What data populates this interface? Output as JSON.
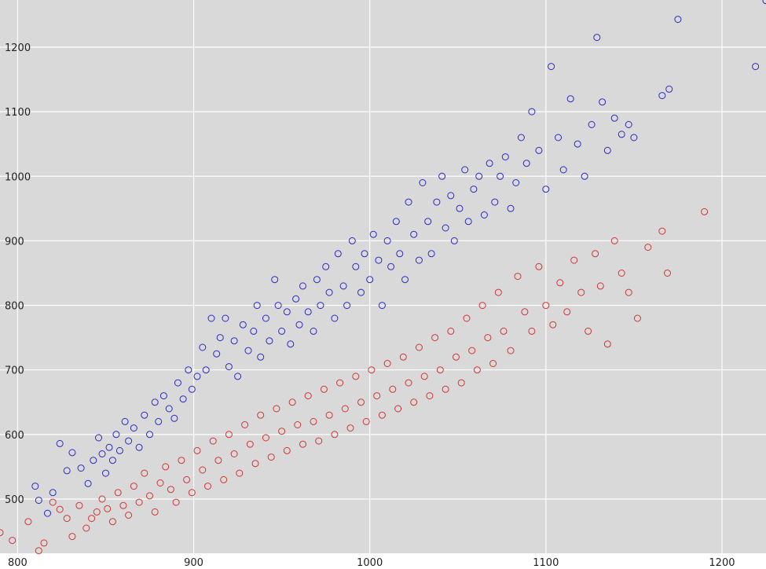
{
  "chart_data": {
    "type": "scatter",
    "title": "",
    "xlabel": "",
    "ylabel": "",
    "xlim": [
      790,
      1225
    ],
    "ylim": [
      416,
      1273
    ],
    "grid": true,
    "x_ticks": [
      800,
      900,
      1000,
      1100,
      1200
    ],
    "y_ticks": [
      500,
      600,
      700,
      800,
      900,
      1000,
      1100,
      1200
    ],
    "series": [
      {
        "color": "#2b2bc8",
        "marker": "open-circle",
        "points": [
          [
            810,
            520
          ],
          [
            812,
            498
          ],
          [
            817,
            478
          ],
          [
            820,
            510
          ],
          [
            824,
            586
          ],
          [
            828,
            544
          ],
          [
            831,
            572
          ],
          [
            836,
            548
          ],
          [
            840,
            524
          ],
          [
            843,
            560
          ],
          [
            846,
            595
          ],
          [
            848,
            570
          ],
          [
            850,
            540
          ],
          [
            852,
            580
          ],
          [
            854,
            560
          ],
          [
            856,
            600
          ],
          [
            858,
            575
          ],
          [
            861,
            620
          ],
          [
            863,
            590
          ],
          [
            866,
            610
          ],
          [
            869,
            580
          ],
          [
            872,
            630
          ],
          [
            875,
            600
          ],
          [
            878,
            650
          ],
          [
            880,
            620
          ],
          [
            883,
            660
          ],
          [
            886,
            640
          ],
          [
            889,
            625
          ],
          [
            891,
            680
          ],
          [
            894,
            655
          ],
          [
            897,
            700
          ],
          [
            899,
            670
          ],
          [
            902,
            690
          ],
          [
            905,
            735
          ],
          [
            907,
            700
          ],
          [
            910,
            780
          ],
          [
            913,
            725
          ],
          [
            915,
            750
          ],
          [
            918,
            780
          ],
          [
            920,
            705
          ],
          [
            923,
            745
          ],
          [
            925,
            690
          ],
          [
            928,
            770
          ],
          [
            931,
            730
          ],
          [
            934,
            760
          ],
          [
            936,
            800
          ],
          [
            938,
            720
          ],
          [
            941,
            780
          ],
          [
            943,
            745
          ],
          [
            946,
            840
          ],
          [
            948,
            800
          ],
          [
            950,
            760
          ],
          [
            953,
            790
          ],
          [
            955,
            740
          ],
          [
            958,
            810
          ],
          [
            960,
            770
          ],
          [
            962,
            830
          ],
          [
            965,
            790
          ],
          [
            968,
            760
          ],
          [
            970,
            840
          ],
          [
            972,
            800
          ],
          [
            975,
            860
          ],
          [
            977,
            820
          ],
          [
            980,
            780
          ],
          [
            982,
            880
          ],
          [
            985,
            830
          ],
          [
            987,
            800
          ],
          [
            990,
            900
          ],
          [
            992,
            860
          ],
          [
            995,
            820
          ],
          [
            997,
            880
          ],
          [
            1000,
            840
          ],
          [
            1002,
            910
          ],
          [
            1005,
            870
          ],
          [
            1007,
            800
          ],
          [
            1010,
            900
          ],
          [
            1012,
            860
          ],
          [
            1015,
            930
          ],
          [
            1017,
            880
          ],
          [
            1020,
            840
          ],
          [
            1022,
            960
          ],
          [
            1025,
            910
          ],
          [
            1028,
            870
          ],
          [
            1030,
            990
          ],
          [
            1033,
            930
          ],
          [
            1035,
            880
          ],
          [
            1038,
            960
          ],
          [
            1041,
            1000
          ],
          [
            1043,
            920
          ],
          [
            1046,
            970
          ],
          [
            1048,
            900
          ],
          [
            1051,
            950
          ],
          [
            1054,
            1010
          ],
          [
            1056,
            930
          ],
          [
            1059,
            980
          ],
          [
            1062,
            1000
          ],
          [
            1065,
            940
          ],
          [
            1068,
            1020
          ],
          [
            1071,
            960
          ],
          [
            1074,
            1000
          ],
          [
            1077,
            1030
          ],
          [
            1080,
            950
          ],
          [
            1083,
            990
          ],
          [
            1086,
            1060
          ],
          [
            1089,
            1020
          ],
          [
            1092,
            1100
          ],
          [
            1096,
            1040
          ],
          [
            1100,
            980
          ],
          [
            1103,
            1170
          ],
          [
            1107,
            1060
          ],
          [
            1110,
            1010
          ],
          [
            1114,
            1120
          ],
          [
            1118,
            1050
          ],
          [
            1122,
            1000
          ],
          [
            1126,
            1080
          ],
          [
            1129,
            1215
          ],
          [
            1132,
            1115
          ],
          [
            1135,
            1040
          ],
          [
            1139,
            1090
          ],
          [
            1143,
            1065
          ],
          [
            1147,
            1080
          ],
          [
            1150,
            1060
          ],
          [
            1166,
            1125
          ],
          [
            1170,
            1135
          ],
          [
            1175,
            1243
          ],
          [
            1219,
            1170
          ],
          [
            1225,
            1272
          ]
        ]
      },
      {
        "color": "#d33535",
        "marker": "open-circle",
        "points": [
          [
            790,
            448
          ],
          [
            797,
            436
          ],
          [
            806,
            465
          ],
          [
            812,
            420
          ],
          [
            815,
            432
          ],
          [
            820,
            495
          ],
          [
            824,
            484
          ],
          [
            828,
            470
          ],
          [
            831,
            442
          ],
          [
            835,
            490
          ],
          [
            839,
            455
          ],
          [
            842,
            470
          ],
          [
            845,
            480
          ],
          [
            848,
            500
          ],
          [
            851,
            485
          ],
          [
            854,
            465
          ],
          [
            857,
            510
          ],
          [
            860,
            490
          ],
          [
            863,
            475
          ],
          [
            866,
            520
          ],
          [
            869,
            495
          ],
          [
            872,
            540
          ],
          [
            875,
            505
          ],
          [
            878,
            480
          ],
          [
            881,
            525
          ],
          [
            884,
            550
          ],
          [
            887,
            515
          ],
          [
            890,
            495
          ],
          [
            893,
            560
          ],
          [
            896,
            530
          ],
          [
            899,
            510
          ],
          [
            902,
            575
          ],
          [
            905,
            545
          ],
          [
            908,
            520
          ],
          [
            911,
            590
          ],
          [
            914,
            560
          ],
          [
            917,
            530
          ],
          [
            920,
            600
          ],
          [
            923,
            570
          ],
          [
            926,
            540
          ],
          [
            929,
            615
          ],
          [
            932,
            585
          ],
          [
            935,
            555
          ],
          [
            938,
            630
          ],
          [
            941,
            595
          ],
          [
            944,
            565
          ],
          [
            947,
            640
          ],
          [
            950,
            605
          ],
          [
            953,
            575
          ],
          [
            956,
            650
          ],
          [
            959,
            615
          ],
          [
            962,
            585
          ],
          [
            965,
            660
          ],
          [
            968,
            620
          ],
          [
            971,
            590
          ],
          [
            974,
            670
          ],
          [
            977,
            630
          ],
          [
            980,
            600
          ],
          [
            983,
            680
          ],
          [
            986,
            640
          ],
          [
            989,
            610
          ],
          [
            992,
            690
          ],
          [
            995,
            650
          ],
          [
            998,
            620
          ],
          [
            1001,
            700
          ],
          [
            1004,
            660
          ],
          [
            1007,
            630
          ],
          [
            1010,
            710
          ],
          [
            1013,
            670
          ],
          [
            1016,
            640
          ],
          [
            1019,
            720
          ],
          [
            1022,
            680
          ],
          [
            1025,
            650
          ],
          [
            1028,
            735
          ],
          [
            1031,
            690
          ],
          [
            1034,
            660
          ],
          [
            1037,
            750
          ],
          [
            1040,
            700
          ],
          [
            1043,
            670
          ],
          [
            1046,
            760
          ],
          [
            1049,
            720
          ],
          [
            1052,
            680
          ],
          [
            1055,
            780
          ],
          [
            1058,
            730
          ],
          [
            1061,
            700
          ],
          [
            1064,
            800
          ],
          [
            1067,
            750
          ],
          [
            1070,
            710
          ],
          [
            1073,
            820
          ],
          [
            1076,
            760
          ],
          [
            1080,
            730
          ],
          [
            1084,
            845
          ],
          [
            1088,
            790
          ],
          [
            1092,
            760
          ],
          [
            1096,
            860
          ],
          [
            1100,
            800
          ],
          [
            1104,
            770
          ],
          [
            1108,
            835
          ],
          [
            1112,
            790
          ],
          [
            1116,
            870
          ],
          [
            1120,
            820
          ],
          [
            1124,
            760
          ],
          [
            1128,
            880
          ],
          [
            1131,
            830
          ],
          [
            1135,
            740
          ],
          [
            1139,
            900
          ],
          [
            1143,
            850
          ],
          [
            1147,
            820
          ],
          [
            1152,
            780
          ],
          [
            1158,
            890
          ],
          [
            1166,
            915
          ],
          [
            1169,
            850
          ],
          [
            1190,
            945
          ]
        ]
      }
    ]
  }
}
